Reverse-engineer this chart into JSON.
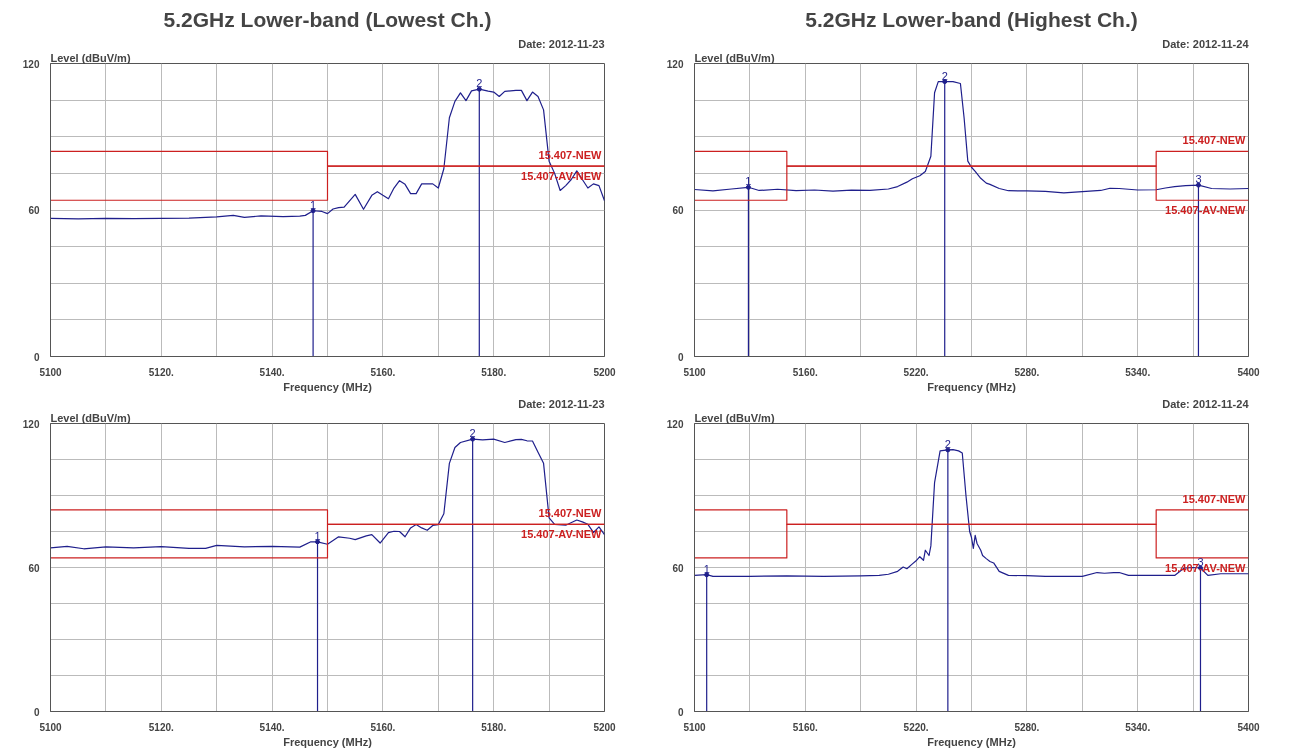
{
  "chart_data": [
    {
      "type": "line",
      "title": "5.2GHz Lower-band (Lowest Ch.)",
      "xlabel": "Frequency (MHz)",
      "ylabel": "Level (dBuV/m)",
      "xlim": [
        5100,
        5200
      ],
      "ylim": [
        0,
        120
      ],
      "xticks": [
        5100,
        {
          "value": 5110,
          "label": null
        },
        {
          "value": 5120,
          "label": "5120."
        },
        {
          "value": 5130,
          "label": null
        },
        {
          "value": 5140,
          "label": "5140."
        },
        {
          "value": 5150,
          "label": null
        },
        {
          "value": 5160,
          "label": "5160."
        },
        {
          "value": 5170,
          "label": null
        },
        {
          "value": 5180,
          "label": "5180."
        },
        {
          "value": 5190,
          "label": null
        },
        5200
      ],
      "yticks": [
        0,
        {
          "value": 15,
          "label": null
        },
        {
          "value": 30,
          "label": null
        },
        {
          "value": 45,
          "label": null
        },
        60,
        {
          "value": 75,
          "label": null
        },
        {
          "value": 90,
          "label": null
        },
        {
          "value": 105,
          "label": null
        },
        120
      ],
      "grid": true,
      "annotations": [
        "Date: 2012-11-23",
        {
          "text": "1",
          "x": 5147.4,
          "y": 59.7
        },
        {
          "text": "2",
          "x": 5177.4,
          "y": 109.5
        }
      ],
      "series": [
        {
          "type": "lollipop",
          "color": "#1f1f8c",
          "x": [
            5147.4,
            5177.4
          ],
          "values": [
            59.7,
            109.5
          ]
        },
        {
          "color": "#1f1f8c",
          "x": [
            5100,
            5105,
            5110,
            5115,
            5120,
            5125,
            5130,
            5133,
            5135,
            5138,
            5142,
            5145,
            5146,
            5147.4,
            5149,
            5150,
            5151,
            5152,
            5153,
            5155,
            5156.5,
            5158,
            5159,
            5160,
            5161,
            5162,
            5163,
            5164,
            5165,
            5166,
            5167,
            5169,
            5170,
            5171,
            5172,
            5173,
            5174,
            5175,
            5176,
            5177.4,
            5179,
            5180,
            5181,
            5182,
            5184,
            5185,
            5186,
            5187,
            5188,
            5189,
            5190,
            5191,
            5192,
            5193,
            5194,
            5195,
            5196,
            5197,
            5198,
            5199,
            5200
          ],
          "values": [
            56.6,
            56.4,
            56.6,
            56.5,
            56.6,
            56.7,
            57.2,
            57.8,
            57.0,
            57.6,
            57.3,
            57.5,
            57.8,
            59.7,
            59.4,
            58.5,
            60.4,
            61,
            61.2,
            66.4,
            60.3,
            66,
            67.5,
            66,
            64.6,
            69,
            72,
            70.5,
            66.7,
            66.7,
            70.7,
            70.7,
            69,
            76.9,
            97.8,
            104.5,
            108,
            104.8,
            108.8,
            109.5,
            108.7,
            108.3,
            106.5,
            108.6,
            109,
            109,
            104.8,
            108.3,
            106.5,
            101,
            80,
            75,
            68,
            70,
            72.5,
            76,
            72.5,
            69,
            70.7,
            70,
            63.8
          ]
        },
        {
          "type": "line",
          "name": "15.407-NEW",
          "color": "#cc2020",
          "x": [
            5100,
            5150,
            5150,
            5200
          ],
          "values": [
            84,
            84,
            78,
            78
          ]
        },
        {
          "type": "line",
          "name": "15.407-AV-NEW",
          "color": "#cc2020",
          "x": [
            5100,
            5150,
            5150,
            5200
          ],
          "values": [
            64,
            64,
            78,
            78
          ]
        }
      ]
    },
    {
      "type": "line",
      "title": "5.2GHz Lower-band (Highest Ch.)",
      "xlabel": "Frequency (MHz)",
      "ylabel": "Level (dBuV/m)",
      "xlim": [
        5100,
        5400
      ],
      "ylim": [
        0,
        120
      ],
      "xticks": [
        5100,
        {
          "value": 5130,
          "label": null
        },
        {
          "value": 5160,
          "label": "5160."
        },
        {
          "value": 5190,
          "label": null
        },
        {
          "value": 5220,
          "label": "5220."
        },
        {
          "value": 5250,
          "label": null
        },
        {
          "value": 5280,
          "label": "5280."
        },
        {
          "value": 5310,
          "label": null
        },
        {
          "value": 5340,
          "label": "5340."
        },
        {
          "value": 5370,
          "label": null
        },
        5400
      ],
      "yticks": [
        0,
        {
          "value": 15,
          "label": null
        },
        {
          "value": 30,
          "label": null
        },
        {
          "value": 45,
          "label": null
        },
        60,
        {
          "value": 75,
          "label": null
        },
        {
          "value": 90,
          "label": null
        },
        {
          "value": 105,
          "label": null
        },
        120
      ],
      "grid": true,
      "annotations": [
        "Date: 2012-11-24",
        {
          "text": "1",
          "x": 5129.2,
          "y": 69.3
        },
        {
          "text": "2",
          "x": 5235.5,
          "y": 112.6
        },
        {
          "text": "3",
          "x": 5372.9,
          "y": 70.2
        }
      ],
      "series": [
        {
          "type": "lollipop",
          "color": "#1f1f8c",
          "x": [
            5129.2,
            5235.5,
            5372.9
          ],
          "values": [
            69.3,
            112.6,
            70.2
          ]
        },
        {
          "color": "#1f1f8c",
          "x": [
            5100,
            5110,
            5120,
            5129.2,
            5135,
            5145,
            5155,
            5165,
            5175,
            5185,
            5195,
            5205,
            5210,
            5215,
            5218,
            5222,
            5225,
            5228,
            5230,
            5232,
            5235.5,
            5240,
            5244,
            5246,
            5248,
            5250,
            5252,
            5255,
            5258,
            5260,
            5265,
            5270,
            5280,
            5290,
            5300,
            5310,
            5320,
            5325,
            5330,
            5340,
            5350,
            5355,
            5360,
            5366,
            5372.9,
            5380,
            5390,
            5400
          ],
          "values": [
            68.4,
            67.8,
            68.6,
            69.3,
            68.0,
            68.5,
            67.9,
            68.2,
            67.7,
            68.1,
            68.0,
            68.6,
            69.6,
            71.4,
            72.8,
            74,
            75.8,
            82,
            108,
            112.6,
            112.6,
            112.6,
            111.8,
            97.7,
            80,
            77.5,
            75.8,
            73,
            71,
            70.5,
            68.8,
            67.9,
            67.8,
            67.6,
            67,
            67.5,
            68,
            68.9,
            68.8,
            68.2,
            68.3,
            69,
            69.6,
            70,
            70.2,
            68.8,
            68.6,
            68.8
          ]
        },
        {
          "type": "line",
          "name": "15.407-NEW",
          "color": "#cc2020",
          "x": [
            5100,
            5150,
            5150,
            5350,
            5350,
            5400
          ],
          "values": [
            84,
            84,
            78,
            78,
            84,
            84
          ]
        },
        {
          "type": "line",
          "name": "15.407-AV-NEW",
          "color": "#cc2020",
          "x": [
            5100,
            5150,
            5150,
            5350,
            5350,
            5400
          ],
          "values": [
            64,
            64,
            78,
            78,
            64,
            64
          ]
        }
      ]
    },
    {
      "type": "line",
      "xlabel": "Frequency (MHz)",
      "ylabel": "Level (dBuV/m)",
      "xlim": [
        5100,
        5200
      ],
      "ylim": [
        0,
        120
      ],
      "xticks": [
        5100,
        {
          "value": 5110,
          "label": null
        },
        {
          "value": 5120,
          "label": "5120."
        },
        {
          "value": 5130,
          "label": null
        },
        {
          "value": 5140,
          "label": "5140."
        },
        {
          "value": 5150,
          "label": null
        },
        {
          "value": 5160,
          "label": "5160."
        },
        {
          "value": 5170,
          "label": null
        },
        {
          "value": 5180,
          "label": "5180."
        },
        {
          "value": 5190,
          "label": null
        },
        5200
      ],
      "yticks": [
        0,
        {
          "value": 15,
          "label": null
        },
        {
          "value": 30,
          "label": null
        },
        {
          "value": 45,
          "label": null
        },
        60,
        {
          "value": 75,
          "label": null
        },
        {
          "value": 90,
          "label": null
        },
        {
          "value": 105,
          "label": null
        },
        120
      ],
      "grid": true,
      "annotations": [
        "Date: 2012-11-23",
        {
          "text": "1",
          "x": 5148.2,
          "y": 70.7
        },
        {
          "text": "2",
          "x": 5176.2,
          "y": 113.5
        }
      ],
      "series": [
        {
          "type": "lollipop",
          "color": "#1f1f8c",
          "x": [
            5148.2,
            5176.2
          ],
          "values": [
            70.7,
            113.5
          ]
        },
        {
          "color": "#1f1f8c",
          "x": [
            5100,
            5103,
            5106,
            5110,
            5115,
            5120,
            5125,
            5128,
            5130,
            5135,
            5140,
            5145,
            5147,
            5148.2,
            5150,
            5152,
            5154,
            5155,
            5157,
            5158,
            5159.5,
            5161,
            5162,
            5163,
            5164,
            5165,
            5166,
            5167,
            5168,
            5169,
            5170,
            5171,
            5172,
            5173,
            5174,
            5176.2,
            5178,
            5180,
            5182,
            5184,
            5185,
            5186,
            5187,
            5188,
            5189,
            5190,
            5191,
            5193,
            5195,
            5196,
            5197,
            5198,
            5199,
            5200
          ],
          "values": [
            68.2,
            68.8,
            67.8,
            68.6,
            68.2,
            68.7,
            68.0,
            68.0,
            69.2,
            68.6,
            68.8,
            68.5,
            70.7,
            70.7,
            69.7,
            72.8,
            72.2,
            71.6,
            73.2,
            73.7,
            70.2,
            74.5,
            75.1,
            75,
            72.8,
            76.5,
            77.9,
            76.5,
            75.5,
            77.5,
            77.9,
            82.4,
            103.4,
            110,
            112.1,
            113.5,
            113.2,
            113.5,
            112.1,
            113.3,
            113.4,
            112.8,
            112.7,
            108,
            103.4,
            80.7,
            78,
            77.6,
            79.8,
            79,
            78,
            74.6,
            76.9,
            73.7
          ]
        },
        {
          "type": "line",
          "name": "15.407-NEW",
          "color": "#cc2020",
          "x": [
            5100,
            5150,
            5150,
            5200
          ],
          "values": [
            84,
            84,
            78,
            78
          ]
        },
        {
          "type": "line",
          "name": "15.407-AV-NEW",
          "color": "#cc2020",
          "x": [
            5100,
            5150,
            5150,
            5200
          ],
          "values": [
            64,
            64,
            78,
            78
          ]
        }
      ]
    },
    {
      "type": "line",
      "xlabel": "Frequency (MHz)",
      "ylabel": "Level (dBuV/m)",
      "xlim": [
        5100,
        5400
      ],
      "ylim": [
        0,
        120
      ],
      "xticks": [
        5100,
        {
          "value": 5130,
          "label": null
        },
        {
          "value": 5160,
          "label": "5160."
        },
        {
          "value": 5190,
          "label": null
        },
        {
          "value": 5220,
          "label": "5220."
        },
        {
          "value": 5250,
          "label": null
        },
        {
          "value": 5280,
          "label": "5280."
        },
        {
          "value": 5310,
          "label": null
        },
        {
          "value": 5340,
          "label": "5340."
        },
        {
          "value": 5370,
          "label": null
        },
        5400
      ],
      "yticks": [
        0,
        {
          "value": 15,
          "label": null
        },
        {
          "value": 30,
          "label": null
        },
        {
          "value": 45,
          "label": null
        },
        60,
        {
          "value": 75,
          "label": null
        },
        {
          "value": 90,
          "label": null
        },
        {
          "value": 105,
          "label": null
        },
        120
      ],
      "grid": true,
      "annotations": [
        "Date: 2012-11-24",
        {
          "text": "1",
          "x": 5106.6,
          "y": 57
        },
        {
          "text": "2",
          "x": 5237.2,
          "y": 109
        },
        {
          "text": "3",
          "x": 5374,
          "y": 59.8
        }
      ],
      "series": [
        {
          "type": "lollipop",
          "color": "#1f1f8c",
          "x": [
            5106.6,
            5237.2,
            5374
          ],
          "values": [
            57,
            109,
            59.8
          ]
        },
        {
          "color": "#1f1f8c",
          "x": [
            5100,
            5106.6,
            5110,
            5130,
            5150,
            5170,
            5190,
            5200,
            5205,
            5210,
            5213,
            5215,
            5218,
            5220,
            5222,
            5224,
            5225,
            5227,
            5228,
            5230,
            5233,
            5237.2,
            5240,
            5243,
            5245,
            5247,
            5249,
            5250,
            5251,
            5252,
            5253,
            5255,
            5256,
            5258,
            5260,
            5262,
            5265,
            5270,
            5280,
            5290,
            5300,
            5310,
            5318,
            5322,
            5327,
            5330,
            5335,
            5350,
            5360,
            5365,
            5370,
            5374,
            5378,
            5385,
            5400
          ],
          "values": [
            56.7,
            57,
            56.3,
            56.3,
            56.5,
            56.3,
            56.5,
            56.7,
            57.2,
            58.4,
            60.2,
            59.5,
            61.5,
            62.8,
            64.5,
            63,
            67.2,
            65,
            69,
            95.4,
            108.6,
            109,
            109.1,
            108.6,
            107.7,
            90,
            75,
            72.5,
            68,
            73.4,
            70,
            67.2,
            65,
            63.7,
            62.5,
            61.9,
            58.4,
            56.7,
            56.6,
            56.3,
            56.3,
            56.3,
            57.9,
            57.6,
            57.9,
            57.9,
            56.7,
            56.7,
            56.7,
            59.7,
            60,
            59.8,
            56.7,
            57.4,
            57.4
          ]
        },
        {
          "type": "line",
          "name": "15.407-NEW",
          "color": "#cc2020",
          "x": [
            5100,
            5150,
            5150,
            5350,
            5350,
            5400
          ],
          "values": [
            84,
            84,
            78,
            78,
            84,
            84
          ]
        },
        {
          "type": "line",
          "name": "15.407-AV-NEW",
          "color": "#cc2020",
          "x": [
            5100,
            5150,
            5150,
            5350,
            5350,
            5400
          ],
          "values": [
            64,
            64,
            78,
            78,
            64,
            64
          ]
        }
      ]
    }
  ]
}
